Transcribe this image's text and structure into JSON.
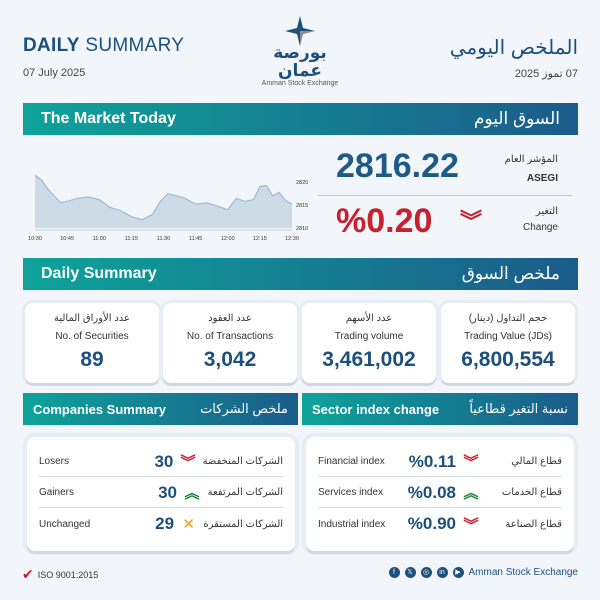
{
  "header": {
    "title_en_bold": "DAILY",
    "title_en_rest": "SUMMARY",
    "date_en": "07 July 2025",
    "title_ar": "الملخص اليومي",
    "date_ar": "07 تموز 2025",
    "logo_ar": "بورصة عمان",
    "logo_en": "Amman Stock Exchange"
  },
  "market_today": {
    "title_en": "The Market Today",
    "title_ar": "السوق اليوم",
    "index_label_ar": "المؤشر العام",
    "index_label_en": "ASEGI",
    "index_value": "2816.22",
    "change_label_ar": "التغير",
    "change_label_en": "Change",
    "change_value": "%0.20",
    "change_direction": "down"
  },
  "chart_data": {
    "type": "area",
    "x": [
      "10:30",
      "10:33",
      "10:36",
      "10:39",
      "10:42",
      "10:45",
      "10:50",
      "10:55",
      "11:00",
      "11:05",
      "11:10",
      "11:15",
      "11:20",
      "11:25",
      "11:28",
      "11:32",
      "11:36",
      "11:40",
      "11:45",
      "11:50",
      "11:55",
      "12:00",
      "12:04",
      "12:08",
      "12:12",
      "12:15",
      "12:18",
      "12:21",
      "12:24",
      "12:27",
      "12:30"
    ],
    "values": [
      2821.5,
      2820.5,
      2818.5,
      2817,
      2815.5,
      2815.8,
      2816.5,
      2816.8,
      2816.2,
      2814.5,
      2813.8,
      2812.5,
      2811.8,
      2813,
      2815.5,
      2817.5,
      2817,
      2816.5,
      2815.2,
      2815.5,
      2814.8,
      2814,
      2816.5,
      2815.8,
      2816.2,
      2819,
      2819.3,
      2817,
      2817.8,
      2816,
      2815.2
    ],
    "x_ticks": [
      "10:30",
      "10:45",
      "11:00",
      "11:15",
      "11:30",
      "11:45",
      "12:00",
      "12:15",
      "12:30"
    ],
    "y_ticks": [
      "2810",
      "2815",
      "2820"
    ],
    "ylim": [
      2810,
      2822
    ],
    "grid": false,
    "color": "#b9cfe0"
  },
  "daily_summary": {
    "title_en": "Daily Summary",
    "title_ar": "ملخص السوق",
    "cards": [
      {
        "ar": "عدد الأوراق المالية",
        "en": "No. of Securities",
        "value": "89"
      },
      {
        "ar": "عدد العقود",
        "en": "No. of Transactions",
        "value": "3,042"
      },
      {
        "ar": "عدد الأسهم",
        "en": "Trading volume",
        "value": "3,461,002"
      },
      {
        "ar": "حجم التداول (دينار)",
        "en": "Trading Value (JDs)",
        "value": "6,800,554"
      }
    ]
  },
  "companies": {
    "title_en": "Companies Summary",
    "title_ar": "ملخص الشركات",
    "rows": [
      {
        "en": "Losers",
        "value": "30",
        "ar": "الشركات المنخفضة",
        "trend": "down"
      },
      {
        "en": "Gainers",
        "value": "30",
        "ar": "الشركات المرتفعة",
        "trend": "up"
      },
      {
        "en": "Unchanged",
        "value": "29",
        "ar": "الشركات المستقرة",
        "trend": "flat"
      }
    ]
  },
  "sectors": {
    "title_en": "Sector index change",
    "title_ar": "نسبة التغير قطاعياً",
    "rows": [
      {
        "en": "Financial index",
        "value": "%0.11",
        "ar": "قطاع المالي",
        "trend": "down"
      },
      {
        "en": "Services index",
        "value": "%0.08",
        "ar": "قطاع الخدمات",
        "trend": "up"
      },
      {
        "en": "Industrial index",
        "value": "%0.90",
        "ar": "قطاع الصناعة",
        "trend": "down"
      }
    ]
  },
  "footer": {
    "iso": "ISO 9001:2015",
    "org": "Amman Stock Exchange",
    "social": [
      "facebook-icon",
      "x-icon",
      "instagram-icon",
      "linkedin-icon",
      "youtube-icon"
    ]
  },
  "colors": {
    "brand": "#1d4f7c",
    "teal": "#0ea39a",
    "down": "#c8202e",
    "up": "#1f8a3e",
    "flat": "#e8a21a"
  }
}
